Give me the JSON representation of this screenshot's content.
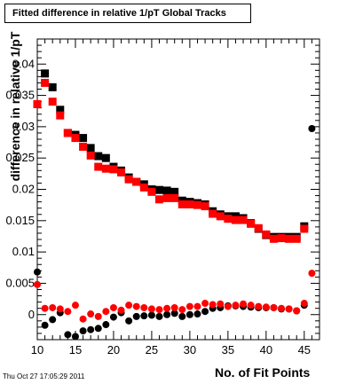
{
  "header": {
    "timestamp": "Thu Oct 27 17:05:29 2011"
  },
  "chart_data": {
    "type": "scatter",
    "title": "Fitted difference in relative 1/pT  Global Tracks",
    "xlabel": "No. of Fit Points",
    "ylabel": "difference in relative 1/pT",
    "xlim": [
      10,
      47
    ],
    "ylim": [
      -0.004,
      0.044
    ],
    "xticks": [
      10,
      15,
      20,
      25,
      30,
      35,
      40,
      45
    ],
    "yticks": [
      0,
      0.005,
      0.01,
      0.015,
      0.02,
      0.025,
      0.03,
      0.035,
      0.04
    ],
    "ytick_labels": [
      "0",
      "0.005",
      "0.01",
      "0.015",
      "0.02",
      "0.025",
      "0.03",
      "0.035",
      "0.04"
    ],
    "grid": false,
    "series": [
      {
        "marker": "square",
        "color": "#000000",
        "x": [
          11,
          12,
          13,
          14,
          15,
          16,
          17,
          18,
          19,
          20,
          21,
          22,
          23,
          24,
          25,
          26,
          27,
          28,
          29,
          30,
          31,
          32,
          33,
          34,
          35,
          36,
          37,
          38,
          39,
          40,
          41,
          42,
          43,
          44,
          45
        ],
        "values": [
          0.0385,
          0.0363,
          0.0327,
          0.029,
          0.0287,
          0.0282,
          0.0266,
          0.0253,
          0.025,
          0.0236,
          0.023,
          0.0219,
          0.0212,
          0.0208,
          0.02,
          0.0199,
          0.0198,
          0.0196,
          0.0182,
          0.018,
          0.0178,
          0.0176,
          0.0165,
          0.016,
          0.0157,
          0.0157,
          0.0154,
          0.0146,
          0.0137,
          0.0127,
          0.0124,
          0.0124,
          0.0124,
          0.0124,
          0.0141
        ]
      },
      {
        "marker": "square",
        "color": "#ff0000",
        "x": [
          10,
          11,
          12,
          13,
          14,
          15,
          16,
          17,
          18,
          19,
          20,
          21,
          22,
          23,
          24,
          25,
          26,
          27,
          28,
          29,
          30,
          31,
          32,
          33,
          34,
          35,
          36,
          37,
          38,
          39,
          40,
          41,
          42,
          43,
          44,
          45
        ],
        "values": [
          0.0336,
          0.037,
          0.034,
          0.0318,
          0.029,
          0.0282,
          0.0268,
          0.0254,
          0.0236,
          0.0233,
          0.0232,
          0.0227,
          0.0216,
          0.0212,
          0.0203,
          0.0196,
          0.0184,
          0.0186,
          0.0186,
          0.0176,
          0.0176,
          0.0175,
          0.0173,
          0.0161,
          0.0157,
          0.0153,
          0.0151,
          0.0151,
          0.0145,
          0.0138,
          0.0128,
          0.0121,
          0.0122,
          0.0121,
          0.0121,
          0.0137
        ]
      },
      {
        "marker": "circle",
        "color": "#000000",
        "x": [
          10,
          11,
          12,
          13,
          14,
          15,
          16,
          17,
          18,
          19,
          20,
          21,
          22,
          23,
          24,
          25,
          26,
          27,
          28,
          29,
          30,
          31,
          32,
          33,
          34,
          35,
          36,
          37,
          38,
          39,
          40,
          41,
          42,
          43,
          44,
          45,
          46
        ],
        "values": [
          0.0068,
          -0.0017,
          -0.0008,
          0.0003,
          -0.0032,
          -0.0035,
          -0.0026,
          -0.0024,
          -0.0022,
          -0.0016,
          -0.0004,
          0.0003,
          -0.001,
          -0.0003,
          -0.0002,
          -0.0001,
          -0.0003,
          0.0,
          0.0002,
          -0.0003,
          0.0,
          0.0001,
          0.0005,
          0.001,
          0.0011,
          0.0014,
          0.0014,
          0.0013,
          0.0012,
          0.0011,
          0.0011,
          0.0011,
          0.0009,
          0.0009,
          0.0006,
          0.0015,
          0.0297
        ]
      },
      {
        "marker": "circle",
        "color": "#ff0000",
        "x": [
          10,
          11,
          12,
          13,
          14,
          15,
          16,
          17,
          18,
          19,
          20,
          21,
          22,
          23,
          24,
          25,
          26,
          27,
          28,
          29,
          30,
          31,
          32,
          33,
          34,
          35,
          36,
          37,
          38,
          39,
          40,
          41,
          42,
          43,
          44,
          45,
          46
        ],
        "values": [
          0.0048,
          0.001,
          0.0011,
          0.0009,
          0.0005,
          0.0015,
          -0.0007,
          0.0001,
          -0.0003,
          0.0005,
          0.0011,
          0.0007,
          0.0015,
          0.0013,
          0.0011,
          0.0009,
          0.0008,
          0.001,
          0.0011,
          0.0008,
          0.0013,
          0.0013,
          0.0018,
          0.0016,
          0.0017,
          0.0013,
          0.0015,
          0.0017,
          0.0015,
          0.0013,
          0.0012,
          0.0011,
          0.001,
          0.0009,
          0.0006,
          0.0018,
          0.0066
        ]
      }
    ]
  }
}
